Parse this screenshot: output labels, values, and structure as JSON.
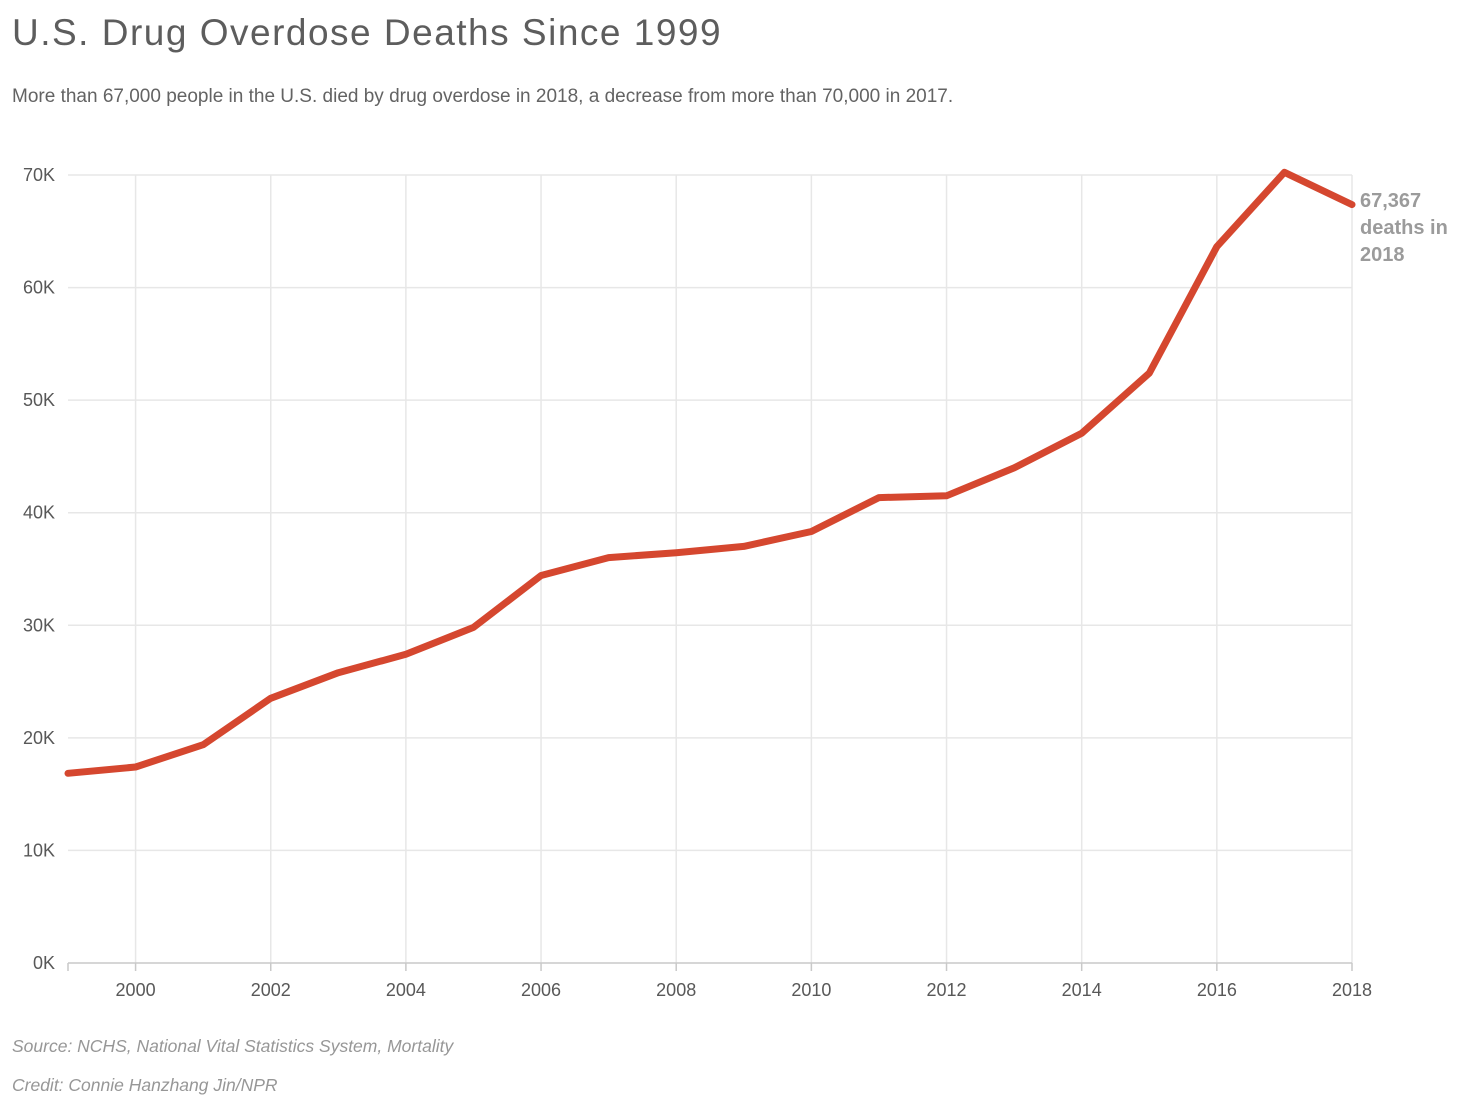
{
  "header": {
    "title": "U.S. Drug Overdose Deaths Since 1999",
    "subtitle": "More than 67,000 people in the U.S. died by drug overdose in 2018, a decrease from more than 70,000 in 2017."
  },
  "chart_data": {
    "type": "line",
    "title": "U.S. Drug Overdose Deaths Since 1999",
    "subtitle": "More than 67,000 people in the U.S. died by drug overdose in 2018, a decrease from more than 70,000 in 2017.",
    "series_name": "Drug overdose deaths",
    "x": [
      1999,
      2000,
      2001,
      2002,
      2003,
      2004,
      2005,
      2006,
      2007,
      2008,
      2009,
      2010,
      2011,
      2012,
      2013,
      2014,
      2015,
      2016,
      2017,
      2018
    ],
    "values": [
      16849,
      17415,
      19394,
      23518,
      25785,
      27424,
      29813,
      34425,
      36010,
      36450,
      37004,
      38329,
      41340,
      41502,
      43982,
      47055,
      52404,
      63632,
      70237,
      67367
    ],
    "xlim": [
      1999,
      2018
    ],
    "ylim": [
      0,
      70000
    ],
    "y_tick_values": [
      0,
      10000,
      20000,
      30000,
      40000,
      50000,
      60000,
      70000
    ],
    "y_tick_labels": [
      "0K",
      "10K",
      "20K",
      "30K",
      "40K",
      "50K",
      "60K",
      "70K"
    ],
    "x_tick_labels": [
      2000,
      2002,
      2004,
      2006,
      2008,
      2010,
      2012,
      2014,
      2016,
      2018
    ],
    "x_tick_marks": [
      1999,
      2000,
      2002,
      2004,
      2006,
      2008,
      2010,
      2012,
      2014,
      2016,
      2018
    ],
    "grid": true,
    "legend": "none",
    "line_color": "#d5472f",
    "grid_color": "#e7e7e7",
    "axis_line_color": "#c9c9c9",
    "annotation": "67,367\ndeaths in\n2018"
  },
  "footer": {
    "source": "Source: NCHS, National Vital Statistics System, Mortality",
    "credit": "Credit: Connie Hanzhang Jin/NPR"
  }
}
